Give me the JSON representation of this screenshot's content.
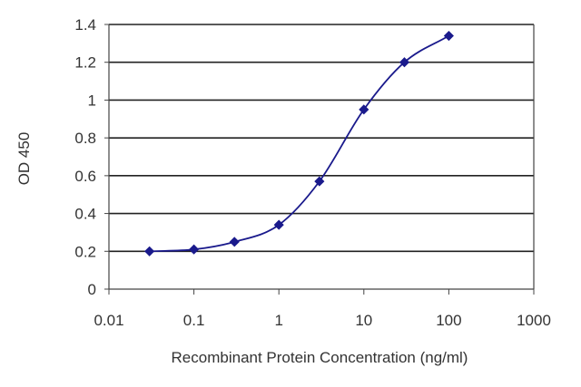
{
  "chart_data": {
    "type": "scatter",
    "title": "",
    "xlabel": "Recombinant Protein Concentration (ng/ml)",
    "ylabel": "OD 450",
    "x_scale": "log",
    "xlim": [
      0.01,
      1000
    ],
    "ylim": [
      0,
      1.4
    ],
    "x_ticks": [
      "0.01",
      "0.1",
      "1",
      "10",
      "100",
      "1000"
    ],
    "y_ticks": [
      "0",
      "0.2",
      "0.4",
      "0.6",
      "0.8",
      "1",
      "1.2",
      "1.4"
    ],
    "grid": "horizontal",
    "series": [
      {
        "x": [
          0.03,
          0.1,
          0.3,
          1,
          3,
          10,
          30,
          100
        ],
        "y": [
          0.2,
          0.21,
          0.25,
          0.34,
          0.57,
          0.95,
          1.2,
          1.34
        ],
        "fit": "sigmoid curve"
      }
    ],
    "colors": {
      "series": "#1a1a8c",
      "grid": "#222222",
      "axis": "#444444"
    }
  }
}
